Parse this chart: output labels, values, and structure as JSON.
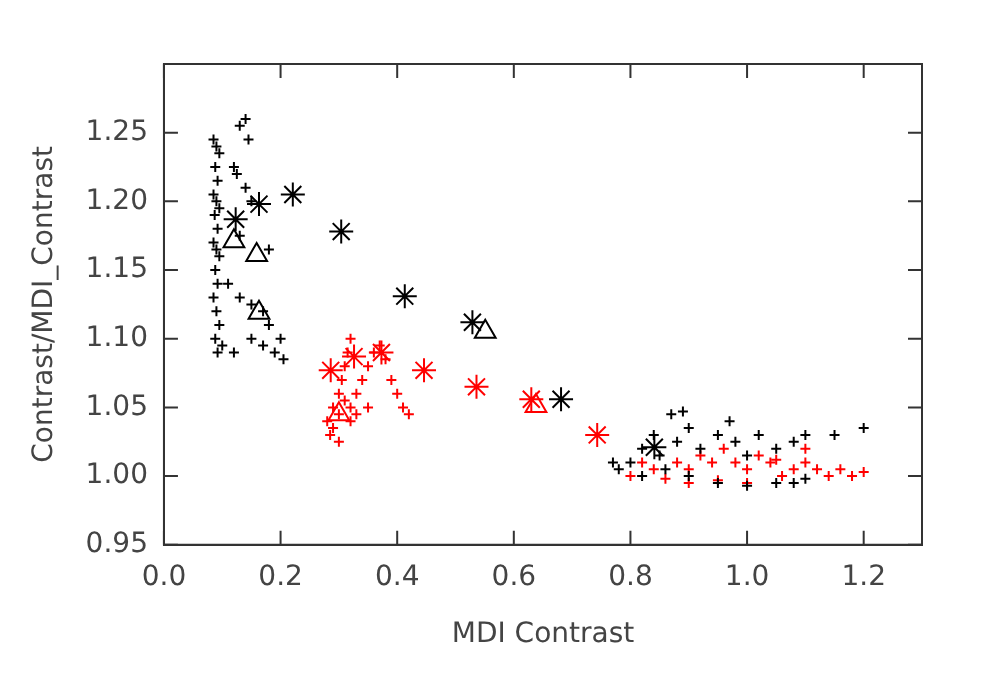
{
  "chart_data": {
    "type": "scatter",
    "xlabel": "MDI Contrast",
    "ylabel": "Contrast/MDI_Contrast",
    "xlim": [
      0,
      1.3
    ],
    "ylim": [
      0.95,
      1.3
    ],
    "xticks": [
      {
        "value": 0,
        "label": "0.0"
      },
      {
        "value": 0.2,
        "label": "0.2"
      },
      {
        "value": 0.4,
        "label": "0.4"
      },
      {
        "value": 0.6,
        "label": "0.6"
      },
      {
        "value": 0.8,
        "label": "0.8"
      },
      {
        "value": 1.0,
        "label": "1.0"
      },
      {
        "value": 1.2,
        "label": "1.2"
      }
    ],
    "yticks": [
      0.95,
      {
        "value": 1.0,
        "label": "1.00"
      },
      {
        "value": 1.05,
        "label": "1.05"
      },
      {
        "value": 1.1,
        "label": "1.10"
      },
      {
        "value": 1.15,
        "label": "1.15"
      },
      {
        "value": 1.2,
        "label": "1.20"
      },
      1.25
    ],
    "grid": false,
    "legend": false,
    "series": [
      {
        "color": "#000000",
        "marker": "cross",
        "x": [
          0.085,
          0.09,
          0.095,
          0.088,
          0.092,
          0.085,
          0.09,
          0.095,
          0.087,
          0.092,
          0.085,
          0.09,
          0.095,
          0.088,
          0.092,
          0.085,
          0.09,
          0.095,
          0.088,
          0.092,
          0.1,
          0.13,
          0.14,
          0.145,
          0.12,
          0.125,
          0.14,
          0.15,
          0.13,
          0.18,
          0.11,
          0.13,
          0.15,
          0.17,
          0.18,
          0.15,
          0.17,
          0.19,
          0.2,
          0.205,
          0.12,
          0.77,
          0.78,
          0.8,
          0.82,
          0.84,
          0.85,
          0.88,
          0.9,
          0.92,
          0.95,
          0.98,
          1.0,
          1.02,
          1.05,
          1.08,
          1.1,
          1.15,
          1.2,
          0.9,
          0.95,
          1.0,
          1.05,
          1.08,
          1.1,
          0.87,
          0.89,
          0.97,
          0.86,
          0.82
        ],
        "values": [
          1.245,
          1.24,
          1.235,
          1.225,
          1.215,
          1.205,
          1.2,
          1.195,
          1.19,
          1.18,
          1.17,
          1.165,
          1.16,
          1.15,
          1.14,
          1.13,
          1.12,
          1.11,
          1.1,
          1.09,
          1.095,
          1.255,
          1.26,
          1.245,
          1.225,
          1.22,
          1.21,
          1.2,
          1.175,
          1.165,
          1.14,
          1.13,
          1.125,
          1.12,
          1.11,
          1.1,
          1.095,
          1.09,
          1.1,
          1.085,
          1.09,
          1.01,
          1.005,
          1.01,
          1.02,
          1.03,
          1.015,
          1.025,
          1.035,
          1.02,
          1.03,
          1.025,
          1.015,
          1.03,
          1.02,
          1.025,
          1.03,
          1.03,
          1.035,
          1.0,
          0.995,
          0.993,
          0.995,
          0.995,
          0.998,
          1.045,
          1.047,
          1.04,
          1.005,
          1.0
        ]
      },
      {
        "color": "#ff0000",
        "marker": "cross",
        "x": [
          0.28,
          0.285,
          0.29,
          0.3,
          0.305,
          0.31,
          0.315,
          0.32,
          0.29,
          0.3,
          0.31,
          0.32,
          0.33,
          0.34,
          0.35,
          0.36,
          0.37,
          0.38,
          0.39,
          0.4,
          0.41,
          0.42,
          0.3,
          0.32,
          0.33,
          0.35,
          0.8,
          0.82,
          0.84,
          0.86,
          0.88,
          0.9,
          0.92,
          0.94,
          0.96,
          0.98,
          1.0,
          1.02,
          1.04,
          1.06,
          1.08,
          1.1,
          1.12,
          1.14,
          1.16,
          1.18,
          1.2,
          0.9,
          0.95,
          1.0,
          1.05,
          1.1
        ],
        "values": [
          1.04,
          1.03,
          1.05,
          1.06,
          1.07,
          1.08,
          1.09,
          1.1,
          1.035,
          1.045,
          1.055,
          1.05,
          1.06,
          1.07,
          1.08,
          1.09,
          1.095,
          1.085,
          1.07,
          1.06,
          1.05,
          1.045,
          1.025,
          1.04,
          1.045,
          1.05,
          1.0,
          1.01,
          1.005,
          0.998,
          1.01,
          1.005,
          1.015,
          1.01,
          1.02,
          1.01,
          1.005,
          1.015,
          1.01,
          1.0,
          1.005,
          1.01,
          1.005,
          1.0,
          1.005,
          1.0,
          1.003,
          0.995,
          0.997,
          0.995,
          1.012,
          1.02
        ]
      },
      {
        "color": "#000000",
        "x": [
          0.123,
          0.163,
          0.221,
          0.304,
          0.413,
          0.529,
          0.681,
          0.841
        ],
        "values": [
          1.187,
          1.198,
          1.205,
          1.178,
          1.131,
          1.112,
          1.056,
          1.021
        ]
      },
      {
        "color": "#ff0000",
        "x": [
          0.286,
          0.326,
          0.373,
          0.446,
          0.536,
          0.63,
          0.743
        ],
        "values": [
          1.077,
          1.087,
          1.09,
          1.077,
          1.065,
          1.056,
          1.03
        ]
      },
      {
        "color": "#000000",
        "marker": "triangle",
        "x": [
          0.12,
          0.159,
          0.163,
          0.551
        ],
        "values": [
          1.171,
          1.161,
          1.119,
          1.105
        ]
      },
      {
        "color": "#ff0000",
        "marker": "triangle",
        "x": [
          0.3,
          0.638
        ],
        "values": [
          1.045,
          1.051
        ]
      }
    ]
  }
}
